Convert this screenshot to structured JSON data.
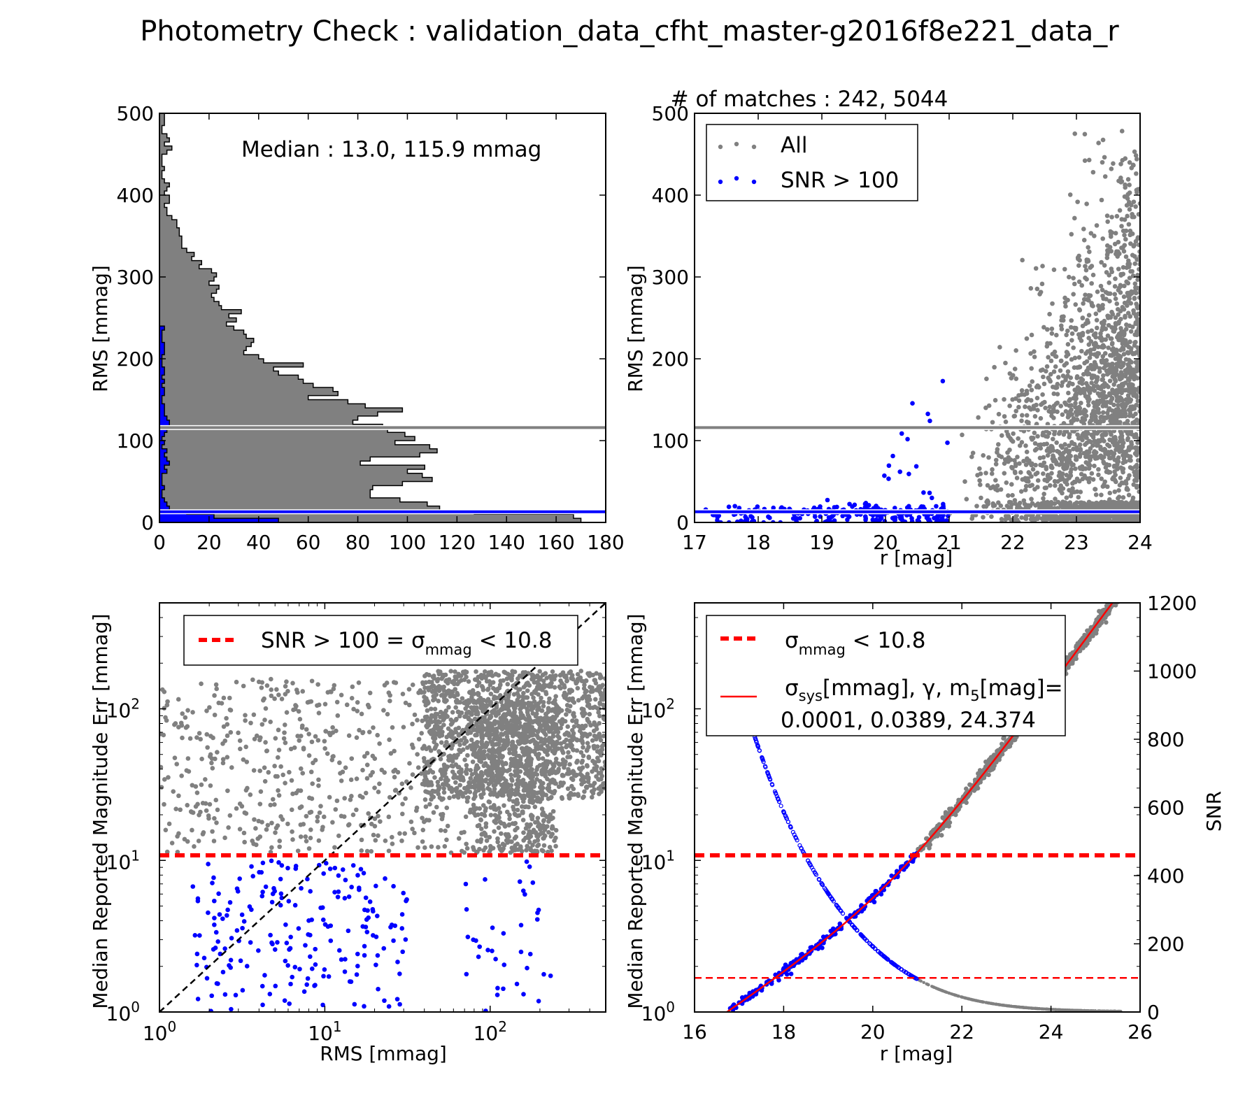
{
  "figure_title": "Photometry Check : validation_data_cfht_master-g2016f8e221_data_r",
  "colors": {
    "all": "#808080",
    "bright": "#0000ff",
    "threshold": "#ff0000",
    "fit": "#ff0000",
    "identity": "#000000"
  },
  "chart_data": [
    {
      "panel": "top-left",
      "type": "bar",
      "orientation": "horizontal histogram (step-filled)",
      "xlabel": "",
      "ylabel": "RMS [mmag]",
      "xlim": [
        0,
        180
      ],
      "ylim": [
        0,
        500
      ],
      "xticks": [
        0,
        20,
        40,
        60,
        80,
        100,
        120,
        140,
        160,
        180
      ],
      "yticks": [
        0,
        100,
        200,
        300,
        400,
        500
      ],
      "annotation": "Median : 13.0, 115.9 mmag",
      "bin_width": 5,
      "series": [
        {
          "name": "",
          "color": "#808080",
          "bins_start": [
            0,
            5,
            10,
            15,
            20,
            25,
            30,
            35,
            40,
            45,
            50,
            55,
            60,
            65,
            70,
            75,
            80,
            85,
            90,
            95,
            100,
            105,
            110,
            115,
            120,
            125,
            130,
            135,
            140,
            145,
            150,
            155,
            160,
            165,
            170,
            175,
            180,
            185,
            190,
            195,
            200,
            205,
            210,
            215,
            220,
            225,
            230,
            235,
            240,
            245,
            250,
            255,
            260,
            265,
            270,
            275,
            280,
            285,
            290,
            295,
            300,
            305,
            310,
            315,
            320,
            325,
            330,
            335,
            340,
            345,
            350,
            355,
            360,
            365,
            370,
            375,
            380,
            385,
            390,
            395,
            400,
            405,
            410,
            415,
            420,
            425,
            430,
            435,
            440,
            445,
            450,
            455,
            460,
            465,
            470,
            475,
            480,
            485,
            490,
            495
          ],
          "counts": [
            170,
            167,
            127,
            113,
            108,
            97,
            85,
            85,
            86,
            98,
            110,
            106,
            100,
            107,
            81,
            85,
            105,
            112,
            109,
            95,
            103,
            99,
            92,
            90,
            78,
            80,
            88,
            98,
            83,
            76,
            60,
            72,
            70,
            62,
            58,
            56,
            48,
            46,
            58,
            42,
            40,
            34,
            35,
            37,
            38,
            35,
            34,
            30,
            27,
            31,
            28,
            33,
            25,
            24,
            22,
            21,
            23,
            24,
            20,
            22,
            23,
            21,
            16,
            17,
            13,
            14,
            11,
            9,
            9,
            9,
            8,
            8,
            7,
            7,
            5,
            3,
            3,
            2,
            4,
            4,
            2,
            3,
            4,
            2,
            1,
            1,
            2,
            1,
            1,
            1,
            3,
            5,
            2,
            4,
            3,
            1,
            1,
            2,
            2,
            2
          ]
        },
        {
          "name": "",
          "color": "#0000ff",
          "bins_start": [
            0,
            5,
            10,
            15,
            20,
            25,
            30,
            35,
            40,
            45,
            50,
            55,
            60,
            65,
            70,
            75,
            80,
            85,
            90,
            95,
            100,
            105,
            110,
            115,
            120,
            125,
            130,
            135,
            140,
            145,
            150,
            155,
            160,
            165,
            170,
            175,
            180,
            185,
            190,
            195,
            200,
            205,
            210,
            215,
            220,
            225,
            230,
            235
          ],
          "counts": [
            48,
            22,
            11,
            4,
            3,
            2,
            1,
            1,
            2,
            1,
            1,
            1,
            3,
            2,
            4,
            3,
            2,
            3,
            1,
            2,
            1,
            2,
            3,
            4,
            4,
            3,
            2,
            2,
            2,
            1,
            1,
            2,
            2,
            1,
            2,
            1,
            2,
            2,
            1,
            1,
            1,
            2,
            2,
            2,
            1,
            1,
            1,
            2
          ]
        }
      ],
      "reference_lines": [
        {
          "axis": "y",
          "value": 115.9,
          "color": "#808080"
        },
        {
          "axis": "y",
          "value": 13.0,
          "color": "#0000ff"
        }
      ]
    },
    {
      "panel": "top-right",
      "type": "scatter",
      "title": "# of matches : 242, 5044",
      "xlabel": "r [mag]",
      "ylabel": "RMS [mmag]",
      "xlim": [
        17,
        24
      ],
      "ylim": [
        0,
        500
      ],
      "xticks": [
        17,
        18,
        19,
        20,
        21,
        22,
        23,
        24
      ],
      "yticks": [
        0,
        100,
        200,
        300,
        400,
        500
      ],
      "legend": {
        "position": "upper-left",
        "entries": [
          "All",
          "SNR > 100"
        ]
      },
      "series": [
        {
          "name": "All",
          "color": "#808080",
          "n": 5044,
          "x_range": [
            20.9,
            24.0
          ],
          "rms_median": 115.9
        },
        {
          "name": "SNR > 100",
          "color": "#0000ff",
          "n": 242,
          "x_range": [
            17.0,
            21.0
          ],
          "rms_median": 13.0
        }
      ],
      "reference_lines": [
        {
          "axis": "y",
          "value": 115.9,
          "color": "#808080"
        },
        {
          "axis": "y",
          "value": 13.0,
          "color": "#0000ff"
        }
      ]
    },
    {
      "panel": "bottom-left",
      "type": "scatter",
      "xlabel": "RMS [mmag]",
      "ylabel": "Median Reported Magnitude Err [mmag]",
      "xscale": "log",
      "yscale": "log",
      "xlim": [
        1,
        500
      ],
      "ylim": [
        1,
        500
      ],
      "xticks": [
        1,
        10,
        100
      ],
      "yticks": [
        1,
        10,
        100
      ],
      "xticklabels": [
        "10",
        "10",
        "10"
      ],
      "xtickexponents": [
        "0",
        "1",
        "2"
      ],
      "yticklabels": [
        "10",
        "10",
        "10"
      ],
      "ytickexponents": [
        "0",
        "1",
        "2"
      ],
      "legend": {
        "position": "upper-center",
        "entries": [
          "SNR > 100 = σ",
          "mmag",
          " <  10.8"
        ]
      },
      "series": [
        {
          "name": "",
          "color": "#808080"
        },
        {
          "name": "",
          "color": "#0000ff"
        }
      ],
      "reference_lines": [
        {
          "axis": "y",
          "value": 10.8,
          "color": "#ff0000",
          "style": "dashed"
        },
        {
          "axis": "diag",
          "value": "y=x",
          "color": "#000000",
          "style": "dashed"
        }
      ]
    },
    {
      "panel": "bottom-right",
      "type": "scatter",
      "xlabel": "r [mag]",
      "ylabel": "Median Reported Magnitude Err [mmag]",
      "ylabel_right": "SNR",
      "yscale": "log",
      "xlim": [
        16,
        26
      ],
      "ylim": [
        1,
        500
      ],
      "ylim_right": [
        0,
        1200
      ],
      "xticks": [
        16,
        18,
        20,
        22,
        24,
        26
      ],
      "yticks": [
        1,
        10,
        100
      ],
      "yticklabels": [
        "10",
        "10",
        "10"
      ],
      "ytickexponents": [
        "0",
        "1",
        "2"
      ],
      "yticks_right": [
        0,
        200,
        400,
        600,
        800,
        1000,
        1200
      ],
      "legend": {
        "position": "upper-left",
        "entries": [
          "σ",
          "mmag",
          " <  10.8",
          "σ",
          "sys",
          "[mmag], γ, m",
          "5",
          "[mag]=",
          "0.0001, 0.0389, 24.374"
        ]
      },
      "fit": {
        "sigma_sys_mmag": 0.0001,
        "gamma": 0.0389,
        "m5_mag": 24.374,
        "color": "#ff0000"
      },
      "reference_lines": [
        {
          "axis": "y",
          "value": 10.8,
          "color": "#ff0000",
          "style": "dashed-thick"
        },
        {
          "axis": "y_right",
          "value": 100,
          "color": "#ff0000",
          "style": "dashed-thin"
        }
      ],
      "series": [
        {
          "name": "",
          "color": "#808080",
          "x_range": [
            16.8,
            25.6
          ]
        },
        {
          "name": "",
          "color": "#0000ff",
          "x_range": [
            16.8,
            21.0
          ]
        }
      ]
    }
  ]
}
